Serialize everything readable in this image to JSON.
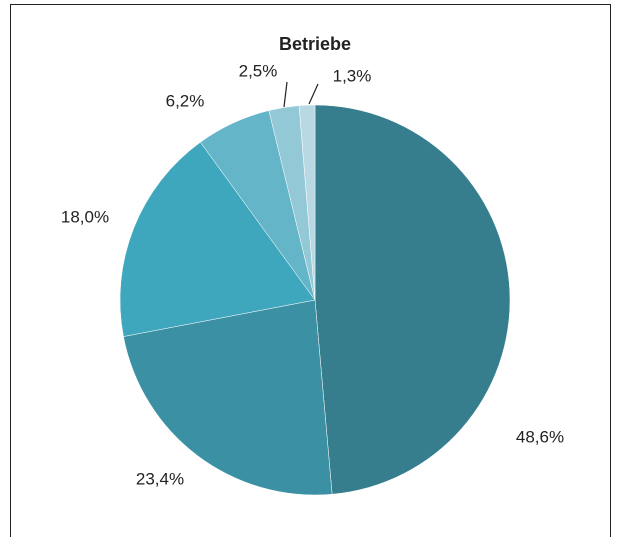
{
  "chart_data": {
    "type": "pie",
    "title": "Betriebe",
    "categories": [
      null,
      null,
      null,
      null,
      null,
      null
    ],
    "values": [
      48.6,
      23.4,
      18.0,
      6.2,
      2.5,
      1.3
    ],
    "value_labels": [
      "48,6%",
      "23,4%",
      "18,0%",
      "6,2%",
      "2,5%",
      "1,3%"
    ],
    "colors": [
      "#367e8e",
      "#3b91a3",
      "#3ea7be",
      "#65b5c8",
      "#93c8d6",
      "#b8d9e3"
    ]
  }
}
